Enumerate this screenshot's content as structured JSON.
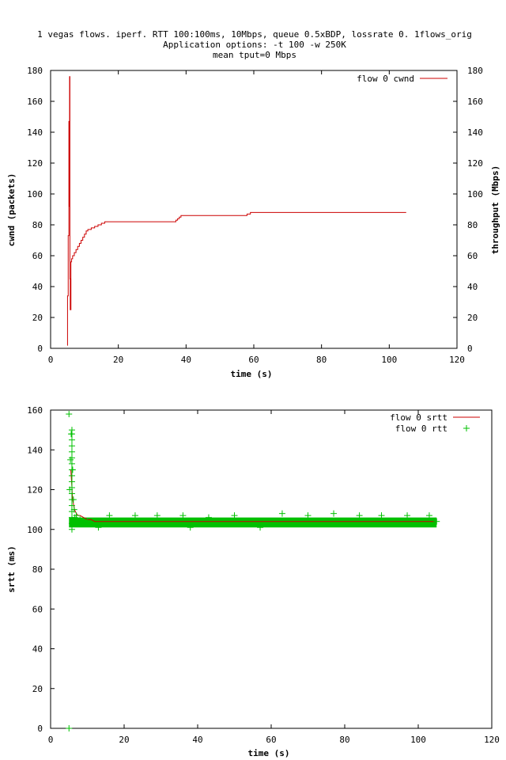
{
  "header": {
    "title_line1": "1 vegas flows. iperf. RTT 100:100ms, 10Mbps, queue 0.5xBDP, lossrate 0. 1flows_orig",
    "title_line2": "Application options: -t 100 -w 250K",
    "title_line3": "mean tput=0 Mbps"
  },
  "colors": {
    "cwnd": "#cc0000",
    "srtt": "#cc0000",
    "rtt": "#00c000",
    "axis": "#000000"
  },
  "chart_data": [
    {
      "type": "line",
      "xlabel": "time (s)",
      "ylabel": "cwnd (packets)",
      "y2label": "throughput (Mbps)",
      "xlim": [
        0,
        120
      ],
      "ylim": [
        0,
        180
      ],
      "y2lim": [
        0,
        180
      ],
      "xticks": [
        "0",
        "20",
        "40",
        "60",
        "80",
        "100",
        "120"
      ],
      "yticks": [
        "0",
        "20",
        "40",
        "60",
        "80",
        "100",
        "120",
        "140",
        "160",
        "180"
      ],
      "y2ticks": [
        "0",
        "20",
        "40",
        "60",
        "80",
        "100",
        "120",
        "140",
        "160",
        "180"
      ],
      "grid": false,
      "legend_position": "top-right",
      "series": [
        {
          "name": "flow 0 cwnd",
          "x": [
            4.9,
            5.0,
            5.2,
            5.4,
            5.5,
            5.6,
            5.7,
            5.8,
            5.9,
            6.0,
            6.2,
            6.5,
            7.0,
            7.5,
            8.0,
            8.5,
            9.0,
            9.5,
            10.0,
            10.5,
            11.0,
            12.0,
            13.0,
            14.0,
            15.0,
            16.0,
            20.0,
            30.0,
            36.5,
            37.0,
            37.5,
            38.0,
            38.5,
            40.0,
            50.0,
            57.5,
            58.0,
            58.5,
            59.0,
            70.0,
            80.0,
            90.0,
            100.0,
            105.0
          ],
          "y": [
            2,
            34,
            73,
            147,
            92,
            176,
            45,
            25,
            25,
            56,
            58,
            60,
            62,
            64,
            66,
            68,
            70,
            72,
            74,
            76,
            77,
            78,
            79,
            80,
            81,
            82,
            82,
            82,
            82,
            83,
            84,
            85,
            86,
            86,
            86,
            86,
            87,
            87,
            88,
            88,
            88,
            88,
            88,
            88
          ]
        }
      ]
    },
    {
      "type": "scatter",
      "xlabel": "time (s)",
      "ylabel": "srtt (ms)",
      "xlim": [
        0,
        120
      ],
      "ylim": [
        0,
        160
      ],
      "xticks": [
        "0",
        "20",
        "40",
        "60",
        "80",
        "100",
        "120"
      ],
      "yticks": [
        "0",
        "20",
        "40",
        "60",
        "80",
        "100",
        "120",
        "140",
        "160"
      ],
      "grid": false,
      "legend_position": "top-right",
      "series": [
        {
          "name": "flow 0 srtt",
          "style": "line",
          "x": [
            5.5,
            6.0,
            6.5,
            7.0,
            7.5,
            8.0,
            9.0,
            10.0,
            11.0,
            12.0,
            20.0,
            40.0,
            60.0,
            80.0,
            100.0,
            105.0
          ],
          "y": [
            130,
            115,
            110,
            108,
            107,
            107,
            106,
            105,
            105,
            104,
            104,
            104,
            104,
            104,
            104,
            104
          ]
        },
        {
          "name": "flow 0 rtt",
          "style": "points",
          "x": [
            5.0,
            5.0,
            5.2,
            5.4,
            5.6,
            5.8,
            6.0,
            6.2,
            6.4,
            6.6,
            7.0,
            8.0,
            10.0,
            13.0,
            16.0,
            23.0,
            29.0,
            36.0,
            38.0,
            43.0,
            50.0,
            57.0,
            63.0,
            70.0,
            77.0,
            84.0,
            90.0,
            97.0,
            103.0,
            105.0
          ],
          "y": [
            0,
            158,
            120,
            135,
            148,
            150,
            130,
            115,
            110,
            106,
            107,
            105,
            104,
            101,
            107,
            107,
            107,
            107,
            101,
            106,
            107,
            101,
            108,
            107,
            108,
            107,
            107,
            107,
            107,
            104
          ],
          "band_range": [
            5.0,
            105.0
          ],
          "band_y": [
            101,
            106
          ]
        }
      ]
    }
  ]
}
